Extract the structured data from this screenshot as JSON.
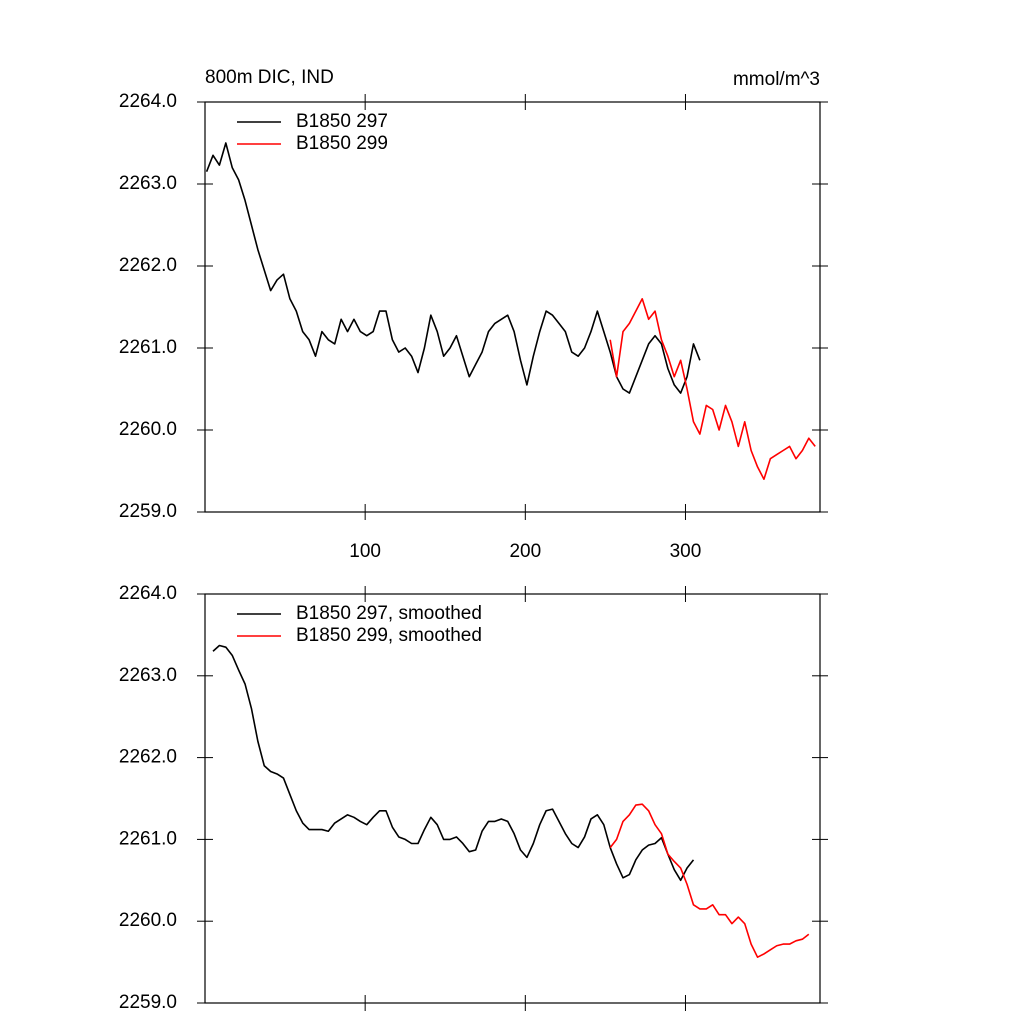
{
  "chart_data": [
    {
      "type": "line",
      "title": "800m DIC, IND",
      "units": "mmol/m^3",
      "legend": "upper left",
      "xlim": [
        0,
        384
      ],
      "xticks": [
        100,
        200,
        300
      ],
      "show_xtick_labels": true,
      "ylim": [
        2259,
        2264
      ],
      "yticks": [
        {
          "value": 2259,
          "label": "2259.0"
        },
        {
          "value": 2260,
          "label": "2260.0"
        },
        {
          "value": 2261,
          "label": "2261.0"
        },
        {
          "value": 2262,
          "label": "2262.0"
        },
        {
          "value": 2263,
          "label": "2263.0"
        },
        {
          "value": 2264,
          "label": "2264.0"
        }
      ],
      "x": [
        1,
        5,
        9,
        13,
        17,
        21,
        25,
        29,
        33,
        37,
        41,
        45,
        49,
        53,
        57,
        61,
        65,
        69,
        73,
        77,
        81,
        85,
        89,
        93,
        97,
        101,
        105,
        109,
        113,
        117,
        121,
        125,
        129,
        133,
        137,
        141,
        145,
        149,
        153,
        157,
        161,
        165,
        169,
        173,
        177,
        181,
        185,
        189,
        193,
        197,
        201,
        205,
        209,
        213,
        217,
        221,
        225,
        229,
        233,
        237,
        241,
        245,
        249,
        253,
        257,
        261,
        265,
        269,
        273,
        277,
        281,
        285,
        289,
        293,
        297,
        301,
        305,
        309,
        313,
        317,
        321,
        325,
        329,
        333,
        337,
        341,
        345,
        349,
        353,
        357,
        361,
        365,
        369,
        373,
        377,
        381
      ],
      "series": [
        {
          "name": "B1850 297",
          "color": "#000000",
          "values": [
            2263.15,
            2263.35,
            2263.23,
            2263.5,
            2263.2,
            2263.05,
            2262.8,
            2262.5,
            2262.2,
            2261.95,
            2261.7,
            2261.83,
            2261.9,
            2261.6,
            2261.45,
            2261.2,
            2261.1,
            2260.9,
            2261.2,
            2261.1,
            2261.05,
            2261.35,
            2261.2,
            2261.35,
            2261.2,
            2261.15,
            2261.2,
            2261.45,
            2261.45,
            2261.1,
            2260.95,
            2261.0,
            2260.9,
            2260.7,
            2261.0,
            2261.4,
            2261.2,
            2260.9,
            2261.0,
            2261.15,
            2260.9,
            2260.65,
            2260.8,
            2260.95,
            2261.2,
            2261.3,
            2261.35,
            2261.4,
            2261.2,
            2260.85,
            2260.55,
            2260.9,
            2261.2,
            2261.45,
            2261.4,
            2261.3,
            2261.2,
            2260.95,
            2260.9,
            2261.0,
            2261.2,
            2261.45,
            2261.2,
            2260.95,
            2260.65,
            2260.5,
            2260.45,
            2260.65,
            2260.85,
            2261.05,
            2261.15,
            2261.05,
            2260.75,
            2260.55,
            2260.45,
            2260.65,
            2261.05,
            2260.85,
            null,
            null,
            null,
            null,
            null,
            null,
            null,
            null,
            null,
            null,
            null,
            null,
            null,
            null,
            null,
            null,
            null,
            null
          ]
        },
        {
          "name": "B1850 299",
          "color": "#ff0000",
          "values": [
            null,
            null,
            null,
            null,
            null,
            null,
            null,
            null,
            null,
            null,
            null,
            null,
            null,
            null,
            null,
            null,
            null,
            null,
            null,
            null,
            null,
            null,
            null,
            null,
            null,
            null,
            null,
            null,
            null,
            null,
            null,
            null,
            null,
            null,
            null,
            null,
            null,
            null,
            null,
            null,
            null,
            null,
            null,
            null,
            null,
            null,
            null,
            null,
            null,
            null,
            null,
            null,
            null,
            null,
            null,
            null,
            null,
            null,
            null,
            null,
            null,
            null,
            null,
            2261.1,
            2260.65,
            2261.2,
            2261.3,
            2261.45,
            2261.6,
            2261.35,
            2261.45,
            2261.1,
            2260.9,
            2260.65,
            2260.85,
            2260.5,
            2260.1,
            2259.95,
            2260.3,
            2260.25,
            2260.0,
            2260.3,
            2260.1,
            2259.8,
            2260.1,
            2259.75,
            2259.55,
            2259.4,
            2259.65,
            2259.7,
            2259.75,
            2259.8,
            2259.65,
            2259.75,
            2259.9,
            2259.8
          ]
        }
      ]
    },
    {
      "type": "line",
      "legend": "upper left",
      "xlim": [
        0,
        384
      ],
      "xticks": [
        100,
        200,
        300
      ],
      "show_xtick_labels": false,
      "ylim": [
        2259,
        2264
      ],
      "yticks": [
        {
          "value": 2259,
          "label": "2259.0"
        },
        {
          "value": 2260,
          "label": "2260.0"
        },
        {
          "value": 2261,
          "label": "2261.0"
        },
        {
          "value": 2262,
          "label": "2262.0"
        },
        {
          "value": 2263,
          "label": "2263.0"
        },
        {
          "value": 2264,
          "label": "2264.0"
        }
      ],
      "x": [
        1,
        5,
        9,
        13,
        17,
        21,
        25,
        29,
        33,
        37,
        41,
        45,
        49,
        53,
        57,
        61,
        65,
        69,
        73,
        77,
        81,
        85,
        89,
        93,
        97,
        101,
        105,
        109,
        113,
        117,
        121,
        125,
        129,
        133,
        137,
        141,
        145,
        149,
        153,
        157,
        161,
        165,
        169,
        173,
        177,
        181,
        185,
        189,
        193,
        197,
        201,
        205,
        209,
        213,
        217,
        221,
        225,
        229,
        233,
        237,
        241,
        245,
        249,
        253,
        257,
        261,
        265,
        269,
        273,
        277,
        281,
        285,
        289,
        293,
        297,
        301,
        305,
        309,
        313,
        317,
        321,
        325,
        329,
        333,
        337,
        341,
        345,
        349,
        353,
        357,
        361,
        365,
        369,
        373,
        377,
        381
      ],
      "series": [
        {
          "name": "B1850 297, smoothed",
          "color": "#000000",
          "values": [
            null,
            2263.3,
            2263.37,
            2263.35,
            2263.25,
            2263.07,
            2262.9,
            2262.6,
            2262.2,
            2261.9,
            2261.83,
            2261.8,
            2261.75,
            2261.55,
            2261.35,
            2261.2,
            2261.12,
            2261.12,
            2261.12,
            2261.1,
            2261.2,
            2261.25,
            2261.3,
            2261.27,
            2261.22,
            2261.18,
            2261.27,
            2261.35,
            2261.35,
            2261.15,
            2261.03,
            2261.0,
            2260.95,
            2260.95,
            2261.12,
            2261.27,
            2261.18,
            2261.0,
            2261.0,
            2261.03,
            2260.95,
            2260.85,
            2260.87,
            2261.1,
            2261.22,
            2261.22,
            2261.25,
            2261.22,
            2261.07,
            2260.87,
            2260.78,
            2260.95,
            2261.18,
            2261.35,
            2261.37,
            2261.22,
            2261.07,
            2260.95,
            2260.9,
            2261.03,
            2261.25,
            2261.3,
            2261.18,
            2260.9,
            2260.7,
            2260.53,
            2260.57,
            2260.75,
            2260.87,
            2260.93,
            2260.95,
            2261.02,
            2260.82,
            2260.63,
            2260.5,
            2260.65,
            2260.75,
            null,
            null,
            null,
            null,
            null,
            null,
            null,
            null,
            null,
            null,
            null,
            null,
            null,
            null,
            null,
            null,
            null,
            null,
            null
          ]
        },
        {
          "name": "B1850 299, smoothed",
          "color": "#ff0000",
          "values": [
            null,
            null,
            null,
            null,
            null,
            null,
            null,
            null,
            null,
            null,
            null,
            null,
            null,
            null,
            null,
            null,
            null,
            null,
            null,
            null,
            null,
            null,
            null,
            null,
            null,
            null,
            null,
            null,
            null,
            null,
            null,
            null,
            null,
            null,
            null,
            null,
            null,
            null,
            null,
            null,
            null,
            null,
            null,
            null,
            null,
            null,
            null,
            null,
            null,
            null,
            null,
            null,
            null,
            null,
            null,
            null,
            null,
            null,
            null,
            null,
            null,
            null,
            null,
            2260.9,
            2261.0,
            2261.22,
            2261.3,
            2261.42,
            2261.43,
            2261.35,
            2261.18,
            2261.07,
            2260.82,
            2260.73,
            2260.65,
            2260.45,
            2260.2,
            2260.15,
            2260.15,
            2260.2,
            2260.08,
            2260.08,
            2259.97,
            2260.05,
            2259.97,
            2259.72,
            2259.56,
            2259.6,
            2259.65,
            2259.7,
            2259.72,
            2259.72,
            2259.76,
            2259.78,
            2259.84,
            null
          ]
        }
      ]
    }
  ]
}
